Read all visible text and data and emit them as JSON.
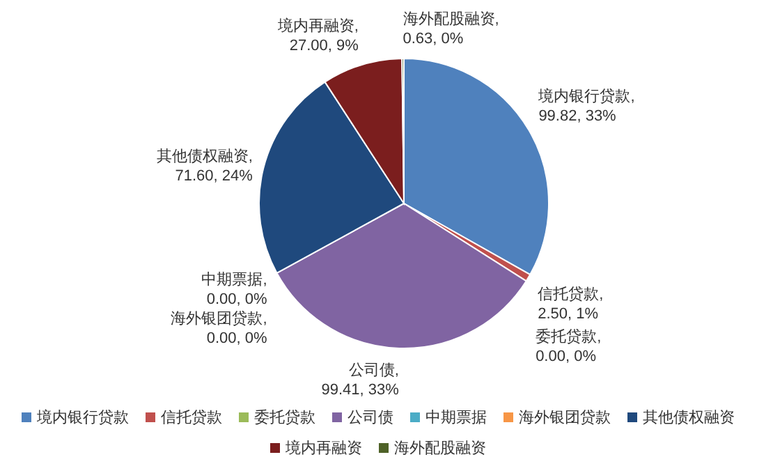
{
  "chart_data": {
    "type": "pie",
    "categories": [
      "境内银行贷款",
      "信托贷款",
      "委托贷款",
      "公司债",
      "中期票据",
      "海外银团贷款",
      "其他债权融资",
      "境内再融资",
      "海外配股融资"
    ],
    "values": [
      99.82,
      2.5,
      0.0,
      99.41,
      0.0,
      0.0,
      71.6,
      27.0,
      0.63
    ],
    "colors": [
      "#4f81bd",
      "#c0504d",
      "#9bbb59",
      "#8064a2",
      "#4bacc6",
      "#f79646",
      "#1f497d",
      "#7b1e1e",
      "#4f6228"
    ],
    "value_labels": [
      "境内银行贷款, 99.82, 33%",
      "信托贷款, 2.50, 1%",
      "委托贷款, 0.00, 0%",
      "公司债, 99.41, 33%",
      "中期票据, 0.00, 0%",
      "海外银团贷款, 0.00, 0%",
      "其他债权融资, 71.60, 24%",
      "境内再融资, 27.00, 9%",
      "海外配股融资, 0.63, 0%"
    ],
    "legend": "bottom"
  }
}
